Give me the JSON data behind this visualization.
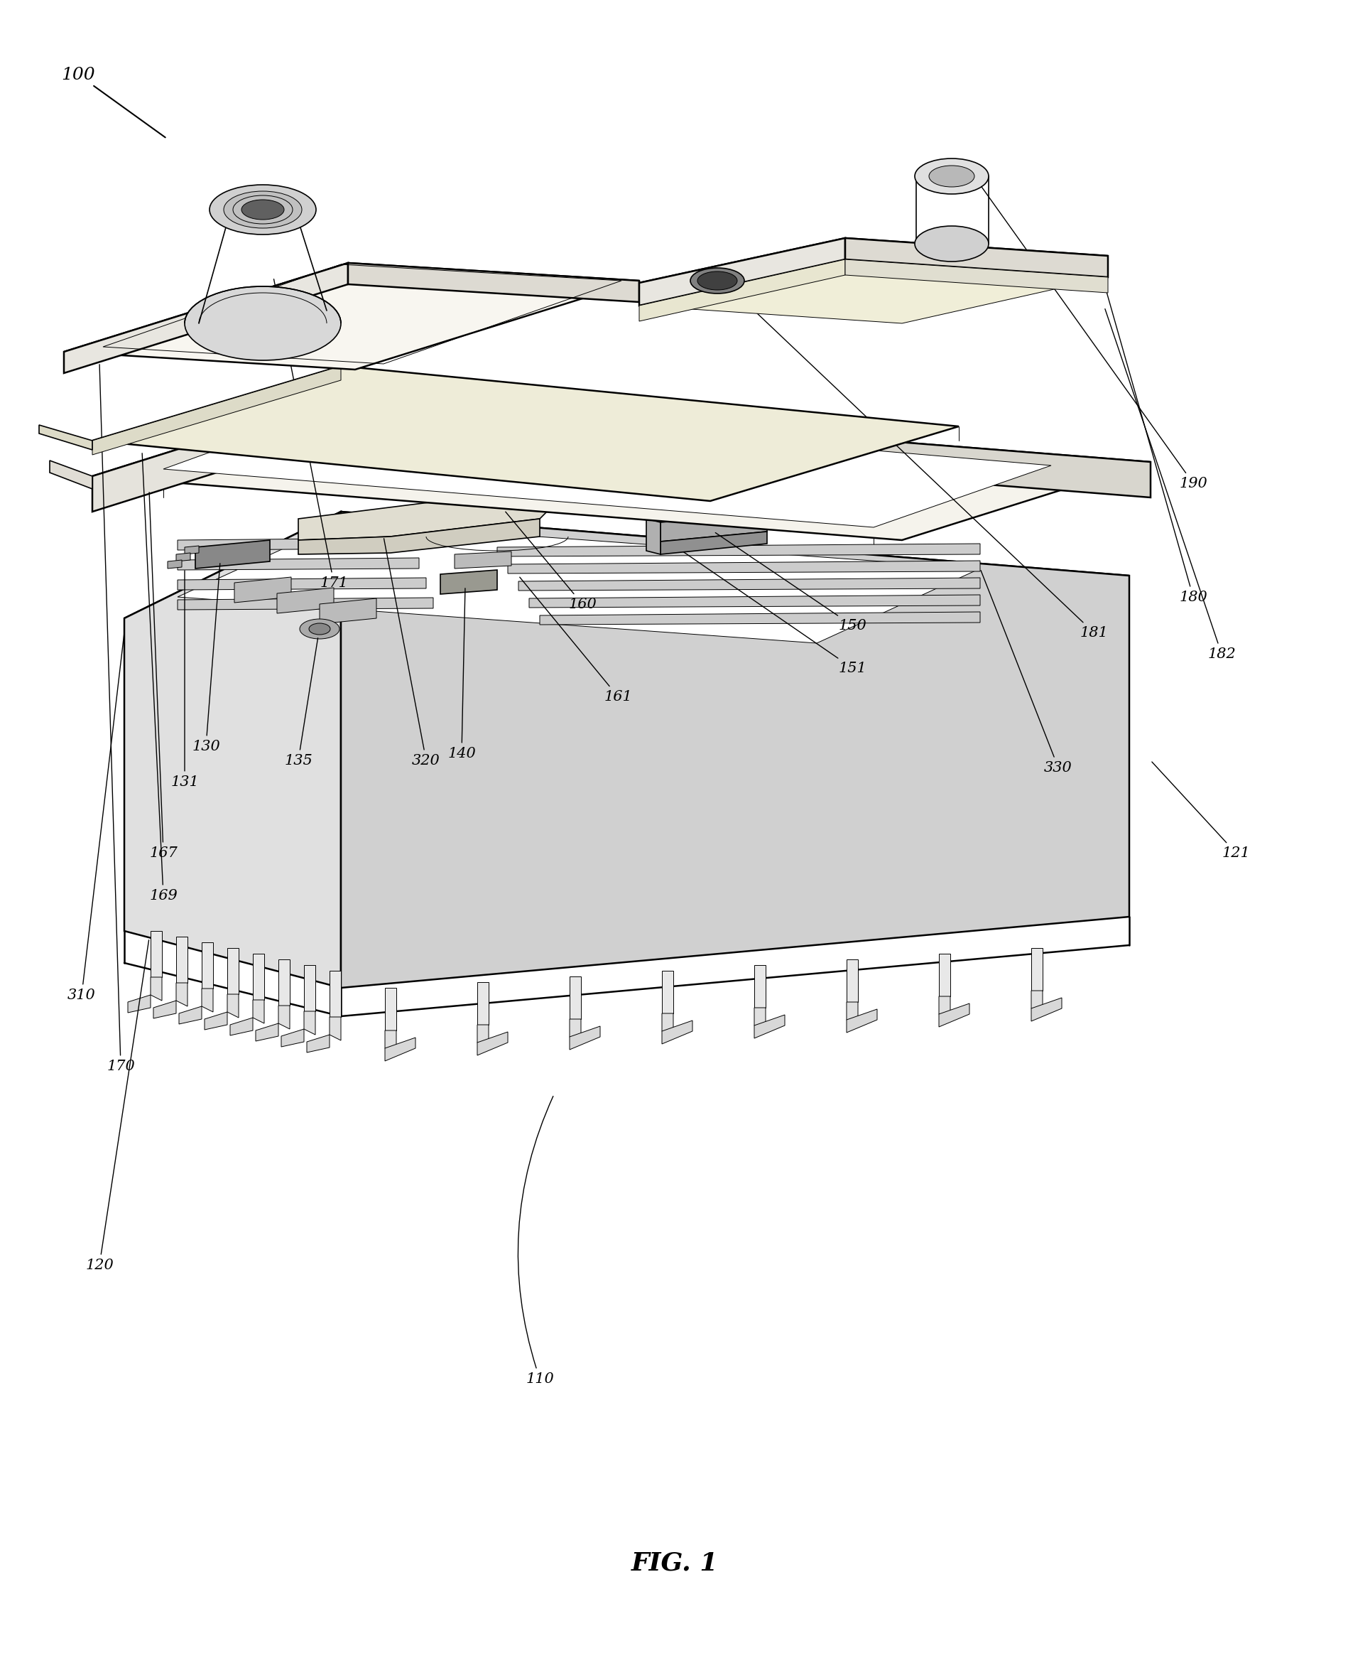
{
  "title": "FIG. 1",
  "bg": "#ffffff",
  "lc": "#000000",
  "fw": 18.99,
  "fh": 23.64,
  "lw": 1.2,
  "lw2": 0.7,
  "lw3": 1.8
}
